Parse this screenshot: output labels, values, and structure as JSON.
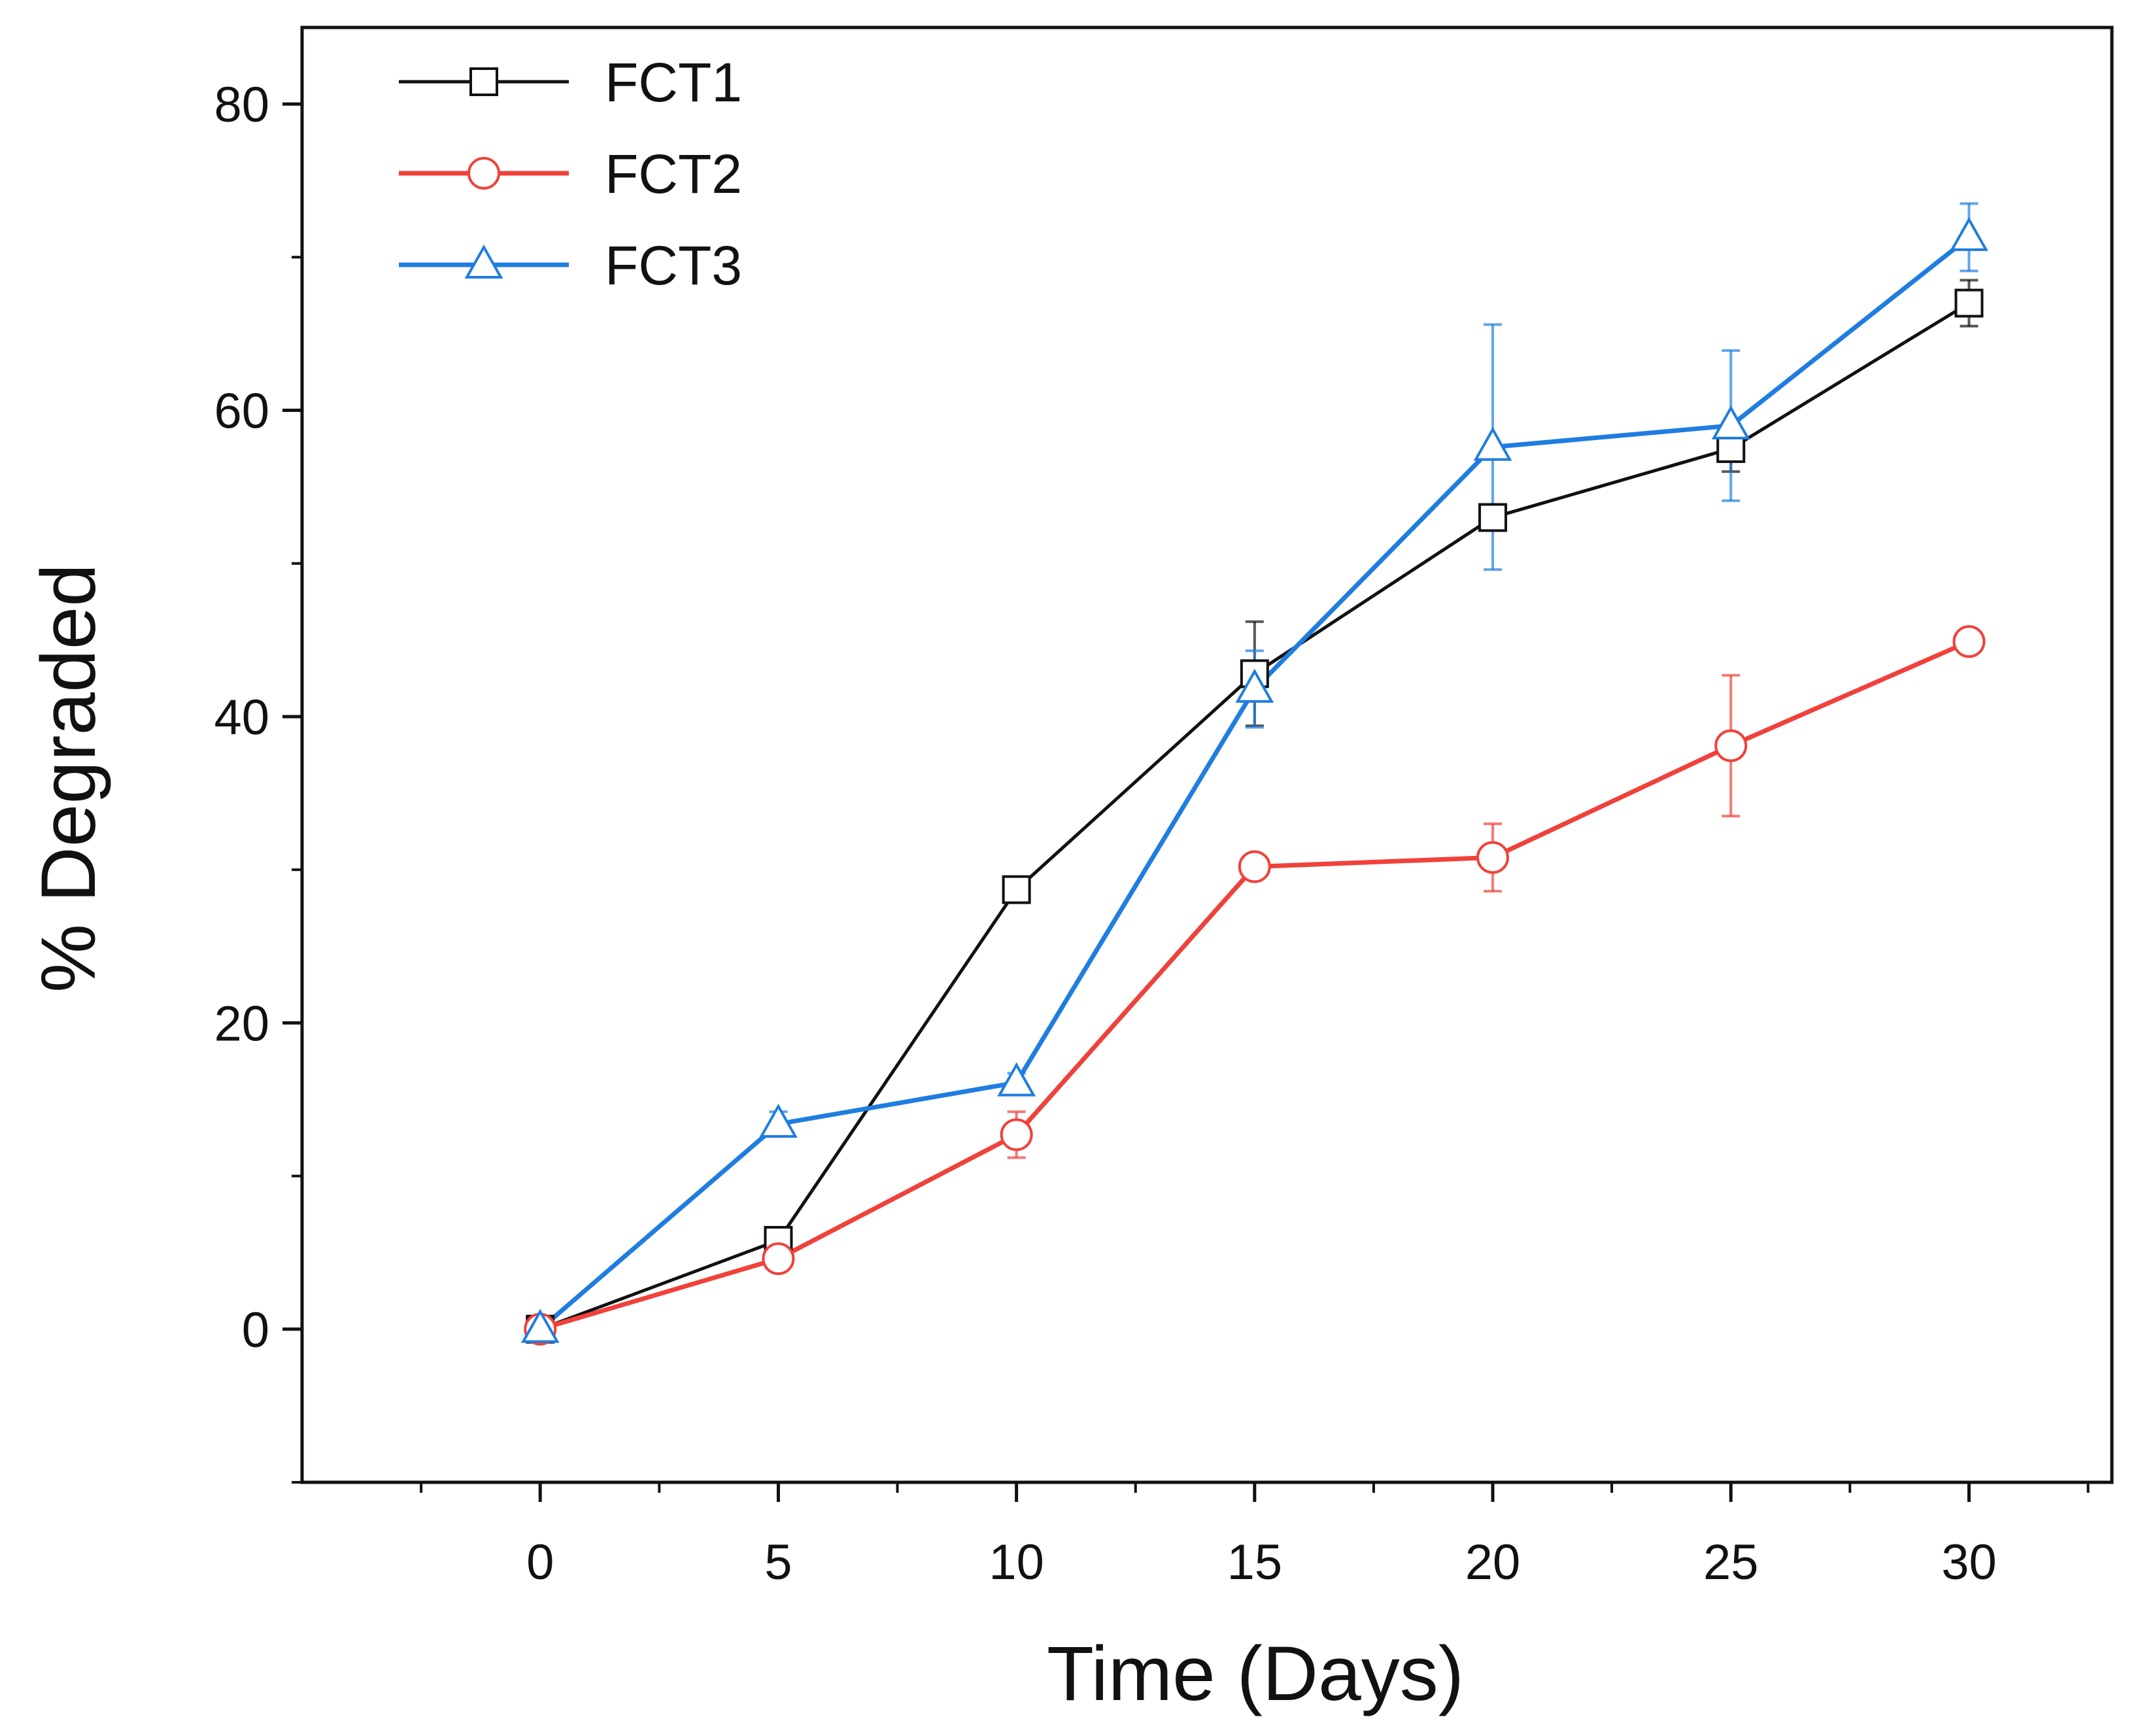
{
  "chart_data": {
    "type": "line",
    "title": "",
    "xlabel": "Time (Days)",
    "ylabel": "% Degraded",
    "xlim": [
      -5,
      33
    ],
    "ylim": [
      -10,
      85
    ],
    "xticks": [
      0,
      5,
      10,
      15,
      20,
      25,
      30
    ],
    "xticks_minor": [
      -2.5,
      2.5,
      7.5,
      12.5,
      17.5,
      22.5,
      27.5,
      32.5
    ],
    "yticks": [
      0,
      20,
      40,
      60,
      80
    ],
    "yticks_minor": [
      -10,
      10,
      30,
      50,
      70
    ],
    "x": [
      0,
      5,
      10,
      15,
      20,
      25,
      30
    ],
    "grid": false,
    "legend": "top-left",
    "series": [
      {
        "name": "FCT1",
        "color": "#111111",
        "marker": "square",
        "values": [
          0,
          5.8,
          28.7,
          42.8,
          53.0,
          57.5,
          67.0
        ],
        "errors": [
          0,
          0.6,
          0.5,
          3.4,
          0.8,
          1.5,
          1.5
        ]
      },
      {
        "name": "FCT2",
        "color": "#f0413a",
        "marker": "circle",
        "values": [
          0,
          4.6,
          12.7,
          30.2,
          30.8,
          38.1,
          44.9
        ],
        "errors": [
          0,
          0.5,
          1.5,
          0.8,
          2.2,
          4.6,
          0.7
        ]
      },
      {
        "name": "FCT3",
        "color": "#1f7de0",
        "marker": "triangle",
        "values": [
          0,
          13.4,
          16.1,
          41.8,
          57.6,
          59.0,
          71.3
        ],
        "errors": [
          0,
          0.8,
          0.6,
          2.5,
          8.0,
          4.9,
          2.2
        ]
      }
    ]
  }
}
